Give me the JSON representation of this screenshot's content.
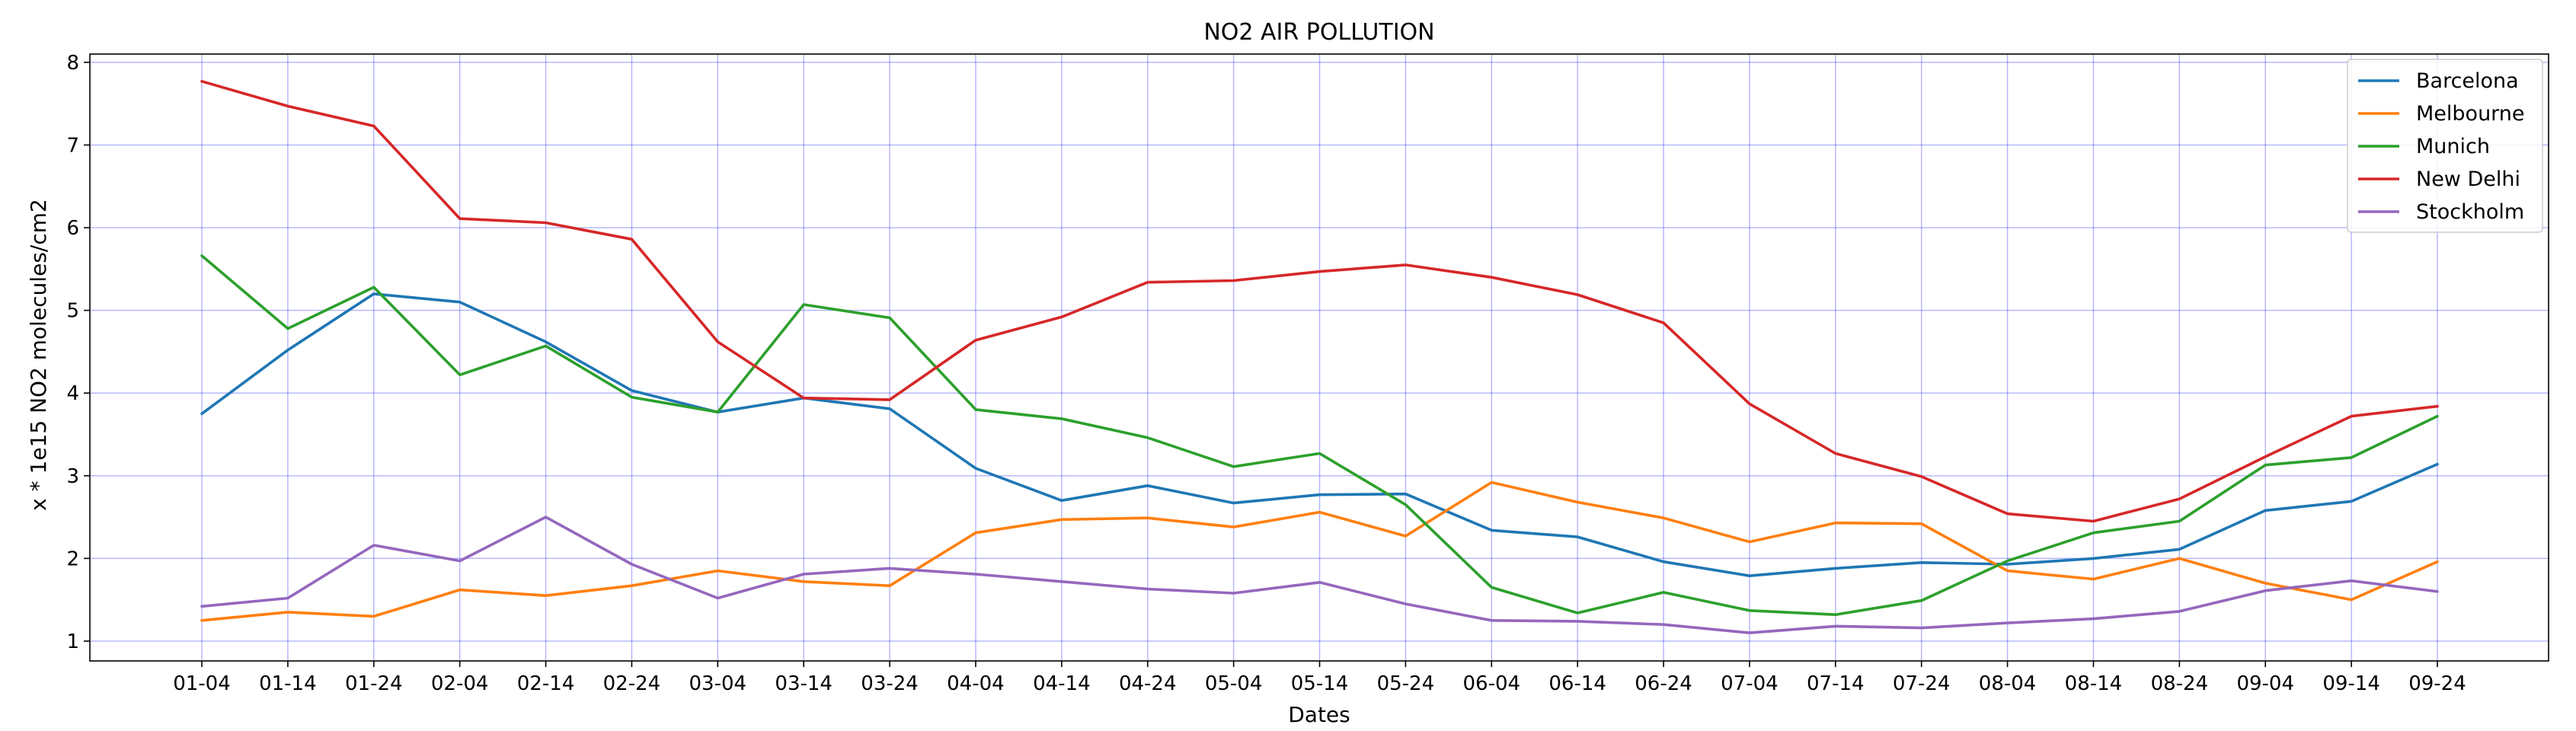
{
  "chart_data": {
    "type": "line",
    "title": "NO2 AIR POLLUTION",
    "xlabel": "Dates",
    "ylabel": "x * 1e15 NO2 molecules/cm2",
    "categories": [
      "01-04",
      "01-14",
      "01-24",
      "02-04",
      "02-14",
      "02-24",
      "03-04",
      "03-14",
      "03-24",
      "04-04",
      "04-14",
      "04-24",
      "05-04",
      "05-14",
      "05-24",
      "06-04",
      "06-14",
      "06-24",
      "07-04",
      "07-14",
      "07-24",
      "08-04",
      "08-14",
      "08-24",
      "09-04",
      "09-14",
      "09-24"
    ],
    "yticks": [
      "1",
      "2",
      "3",
      "4",
      "5",
      "6",
      "7",
      "8"
    ],
    "ylim": [
      0.76,
      8.1
    ],
    "grid": true,
    "grid_color": "#0000ff",
    "legend_position": "upper right",
    "series": [
      {
        "name": "Barcelona",
        "color": "#1f77b4",
        "values": [
          3.75,
          4.52,
          5.2,
          5.1,
          4.62,
          4.03,
          3.77,
          3.94,
          3.81,
          3.09,
          2.7,
          2.88,
          2.67,
          2.77,
          2.78,
          2.34,
          2.26,
          1.96,
          1.79,
          1.88,
          1.95,
          1.93,
          2.0,
          2.11,
          2.58,
          2.69,
          3.14
        ]
      },
      {
        "name": "Melbourne",
        "color": "#ff7f0e",
        "values": [
          1.25,
          1.35,
          1.3,
          1.62,
          1.55,
          1.67,
          1.85,
          1.72,
          1.67,
          2.31,
          2.47,
          2.49,
          2.38,
          2.56,
          2.27,
          2.92,
          2.68,
          2.49,
          2.2,
          2.43,
          2.42,
          1.85,
          1.75,
          2.0,
          1.7,
          1.5,
          1.96
        ]
      },
      {
        "name": "Munich",
        "color": "#2ca02c",
        "values": [
          5.66,
          4.78,
          5.28,
          4.22,
          4.57,
          3.95,
          3.77,
          5.07,
          4.91,
          3.8,
          3.69,
          3.46,
          3.11,
          3.27,
          2.65,
          1.65,
          1.34,
          1.59,
          1.37,
          1.32,
          1.49,
          1.97,
          2.31,
          2.45,
          3.13,
          3.22,
          3.72
        ]
      },
      {
        "name": "New Delhi",
        "color": "#d62728",
        "values": [
          7.77,
          7.47,
          7.23,
          6.11,
          6.06,
          5.86,
          4.62,
          3.94,
          3.92,
          4.64,
          4.92,
          5.34,
          5.36,
          5.47,
          5.55,
          5.4,
          5.19,
          4.85,
          3.87,
          3.27,
          2.99,
          2.54,
          2.45,
          2.72,
          3.23,
          3.72,
          3.84
        ]
      },
      {
        "name": "Stockholm",
        "color": "#9467bd",
        "values": [
          1.42,
          1.52,
          2.16,
          1.97,
          2.5,
          1.93,
          1.52,
          1.81,
          1.88,
          1.81,
          1.72,
          1.63,
          1.58,
          1.71,
          1.45,
          1.25,
          1.24,
          1.2,
          1.1,
          1.18,
          1.16,
          1.22,
          1.27,
          1.36,
          1.61,
          1.73,
          1.6
        ]
      }
    ]
  }
}
